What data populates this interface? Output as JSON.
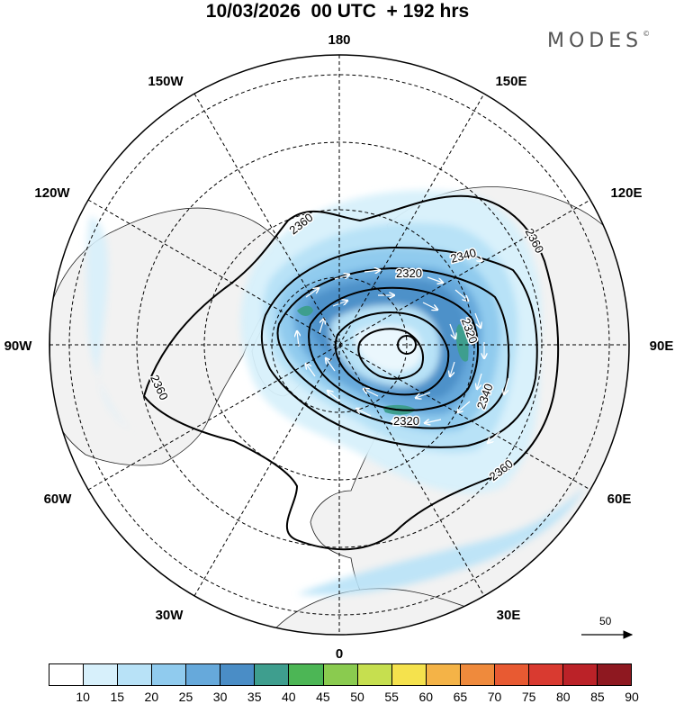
{
  "header": {
    "title": "10/03/2026  00 UTC  + 192 hrs",
    "logo": "MODES",
    "logo_mark": "©"
  },
  "map": {
    "projection": "north-polar-stereographic",
    "longitude_labels": [
      "180",
      "150E",
      "120E",
      "90E",
      "60E",
      "30E",
      "0",
      "30W",
      "60W",
      "90W",
      "120W",
      "150W"
    ],
    "contour_labels": [
      "2360",
      "2360",
      "2360",
      "2360",
      "2340",
      "2320",
      "2320",
      "2340",
      "2320"
    ],
    "wind_arrow_color": "#ffffff",
    "contour_color": "#000000",
    "land_color": "#f2f2f2",
    "reference_vector": "50"
  },
  "colorbar": {
    "labels": [
      "10",
      "15",
      "20",
      "25",
      "30",
      "35",
      "40",
      "45",
      "50",
      "55",
      "60",
      "65",
      "70",
      "75",
      "80",
      "85",
      "90"
    ],
    "colors": [
      "#ffffff",
      "#d7f0fb",
      "#b8e2f7",
      "#90cbee",
      "#66a9db",
      "#4a8dc6",
      "#3e9e8e",
      "#4cb655",
      "#8acb4f",
      "#c6df4f",
      "#f5e24d",
      "#f4b347",
      "#ef8a3c",
      "#e85a32",
      "#d93a30",
      "#bb2228",
      "#8e1820"
    ]
  }
}
